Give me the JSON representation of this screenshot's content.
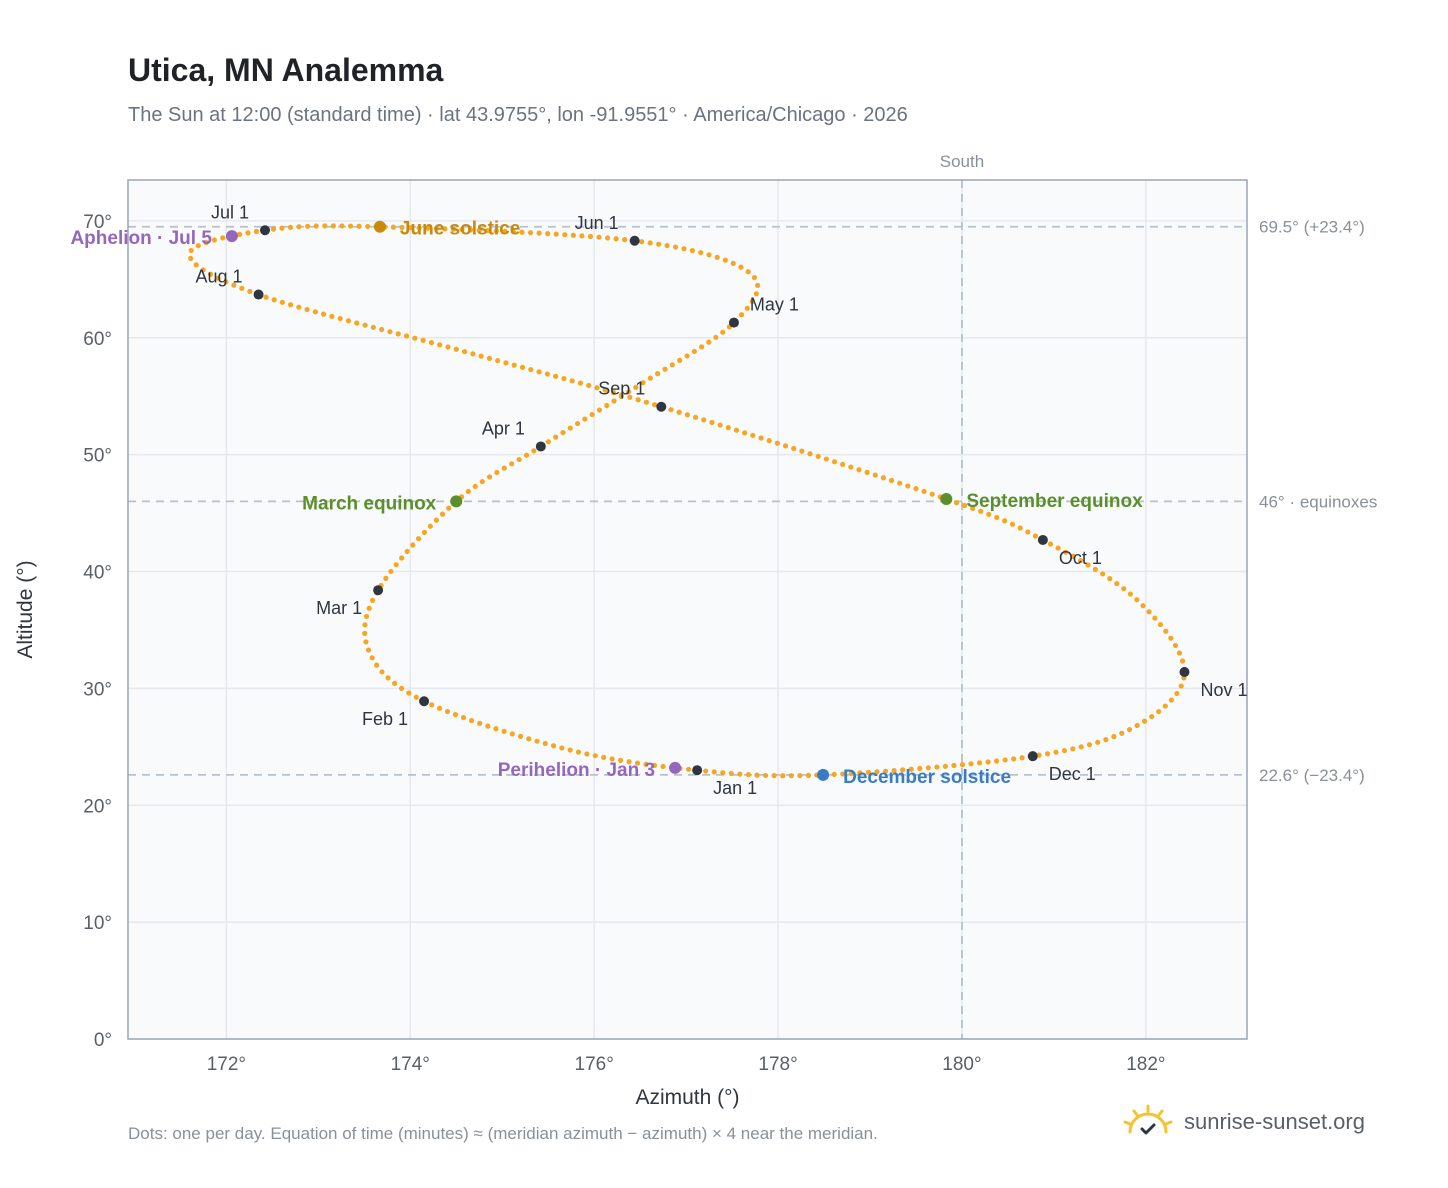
{
  "header": {
    "title": "Utica, MN Analemma",
    "subtitle": "The Sun at 12:00 (standard time) · lat 43.9755°, lon -91.9551° · America/Chicago · 2026"
  },
  "footer": {
    "note": "Dots: one per day. Equation of time (minutes) ≈ (meridian azimuth − azimuth) × 4 near the meridian.",
    "brand": "sunrise-sunset.org"
  },
  "colors": {
    "path": "#f5a623",
    "month_dot": "#2f3640",
    "solstice_june": "#c98a0c",
    "solstice_december": "#3a7cc4",
    "equinox": "#5a8f2c",
    "apsis": "#9467bd",
    "grid": "#e5e9ee",
    "reference": "#b5c2cd",
    "plot_bg": "#f8fafc",
    "axis": "#9aa6b4"
  },
  "chart_data": {
    "type": "scatter",
    "xlabel": "Azimuth (°)",
    "ylabel": "Altitude (°)",
    "xlim": [
      170.93,
      183.1
    ],
    "ylim": [
      0,
      73.5
    ],
    "x_ticks": [
      172,
      174,
      176,
      178,
      180,
      182
    ],
    "x_tick_labels": [
      "172°",
      "174°",
      "176°",
      "178°",
      "180°",
      "182°"
    ],
    "y_ticks": [
      0,
      10,
      20,
      30,
      40,
      50,
      60,
      70
    ],
    "y_tick_labels": [
      "0°",
      "10°",
      "20°",
      "30°",
      "40°",
      "50°",
      "60°",
      "70°"
    ],
    "grid": true,
    "reference_lines": {
      "vertical": [
        {
          "x": 180,
          "label": "South"
        }
      ],
      "horizontal": [
        {
          "y": 69.5,
          "label": "69.5° (+23.4°)"
        },
        {
          "y": 46.0,
          "label": "46° · equinoxes"
        },
        {
          "y": 22.6,
          "label": "22.6° (−23.4°)"
        }
      ]
    },
    "series": [
      {
        "markers": "daily dots",
        "points": [
          {
            "date": "Jan 1",
            "az": 177.12,
            "alt": 23.0
          },
          {
            "date": "Jan 15",
            "az": 175.7,
            "alt": 24.8
          },
          {
            "date": "Feb 1",
            "az": 174.15,
            "alt": 28.9
          },
          {
            "date": "Feb 15",
            "az": 173.55,
            "alt": 33.2
          },
          {
            "date": "Mar 1",
            "az": 173.65,
            "alt": 38.4
          },
          {
            "date": "Mar 20",
            "az": 174.5,
            "alt": 46.0
          },
          {
            "date": "Apr 1",
            "az": 175.42,
            "alt": 50.7
          },
          {
            "date": "Apr 15",
            "az": 176.5,
            "alt": 56.0
          },
          {
            "date": "May 1",
            "az": 177.52,
            "alt": 61.3
          },
          {
            "date": "May 15",
            "az": 177.7,
            "alt": 65.5
          },
          {
            "date": "Jun 1",
            "az": 176.44,
            "alt": 68.3
          },
          {
            "date": "Jun 21",
            "az": 173.67,
            "alt": 69.5
          },
          {
            "date": "Jul 1",
            "az": 172.42,
            "alt": 69.2
          },
          {
            "date": "Jul 15",
            "az": 171.6,
            "alt": 67.2
          },
          {
            "date": "Aug 1",
            "az": 172.35,
            "alt": 63.7
          },
          {
            "date": "Aug 15",
            "az": 174.6,
            "alt": 58.8
          },
          {
            "date": "Sep 1",
            "az": 176.73,
            "alt": 54.1
          },
          {
            "date": "Sep 22",
            "az": 179.83,
            "alt": 46.2
          },
          {
            "date": "Oct 1",
            "az": 180.88,
            "alt": 42.7
          },
          {
            "date": "Oct 15",
            "az": 181.9,
            "alt": 37.6
          },
          {
            "date": "Nov 1",
            "az": 182.42,
            "alt": 31.4
          },
          {
            "date": "Nov 15",
            "az": 181.9,
            "alt": 26.8
          },
          {
            "date": "Dec 1",
            "az": 180.77,
            "alt": 24.2
          },
          {
            "date": "Dec 21",
            "az": 178.49,
            "alt": 22.6
          },
          {
            "date": "Dec 31",
            "az": 177.2,
            "alt": 23.0
          }
        ]
      }
    ],
    "month_markers": [
      {
        "label": "Jan 1",
        "az": 177.12,
        "alt": 23.0,
        "label_pos": "below-right"
      },
      {
        "label": "Feb 1",
        "az": 174.15,
        "alt": 28.9,
        "label_pos": "below-left"
      },
      {
        "label": "Mar 1",
        "az": 173.65,
        "alt": 38.4,
        "label_pos": "below-left"
      },
      {
        "label": "Apr 1",
        "az": 175.42,
        "alt": 50.7,
        "label_pos": "above-left"
      },
      {
        "label": "May 1",
        "az": 177.52,
        "alt": 61.3,
        "label_pos": "above-right"
      },
      {
        "label": "Jun 1",
        "az": 176.44,
        "alt": 68.3,
        "label_pos": "above-left"
      },
      {
        "label": "Jul 1",
        "az": 172.42,
        "alt": 69.2,
        "label_pos": "above-left"
      },
      {
        "label": "Aug 1",
        "az": 172.35,
        "alt": 63.7,
        "label_pos": "above-left"
      },
      {
        "label": "Sep 1",
        "az": 176.73,
        "alt": 54.1,
        "label_pos": "above-left"
      },
      {
        "label": "Oct 1",
        "az": 180.88,
        "alt": 42.7,
        "label_pos": "below-right"
      },
      {
        "label": "Nov 1",
        "az": 182.42,
        "alt": 31.4,
        "label_pos": "below-right"
      },
      {
        "label": "Dec 1",
        "az": 180.77,
        "alt": 24.2,
        "label_pos": "below-right"
      }
    ],
    "events": [
      {
        "label": "June solstice",
        "az": 173.67,
        "alt": 69.5,
        "kind": "solstice_june",
        "label_pos": "right"
      },
      {
        "label": "December solstice",
        "az": 178.49,
        "alt": 22.6,
        "kind": "solstice_december",
        "label_pos": "right"
      },
      {
        "label": "March equinox",
        "az": 174.5,
        "alt": 46.0,
        "kind": "equinox",
        "label_pos": "left"
      },
      {
        "label": "September equinox",
        "az": 179.83,
        "alt": 46.2,
        "kind": "equinox",
        "label_pos": "right"
      },
      {
        "label": "Aphelion · Jul 5",
        "az": 172.06,
        "alt": 68.7,
        "kind": "apsis",
        "label_pos": "left"
      },
      {
        "label": "Perihelion · Jan 3",
        "az": 176.88,
        "alt": 23.2,
        "kind": "apsis",
        "label_pos": "left"
      }
    ]
  }
}
